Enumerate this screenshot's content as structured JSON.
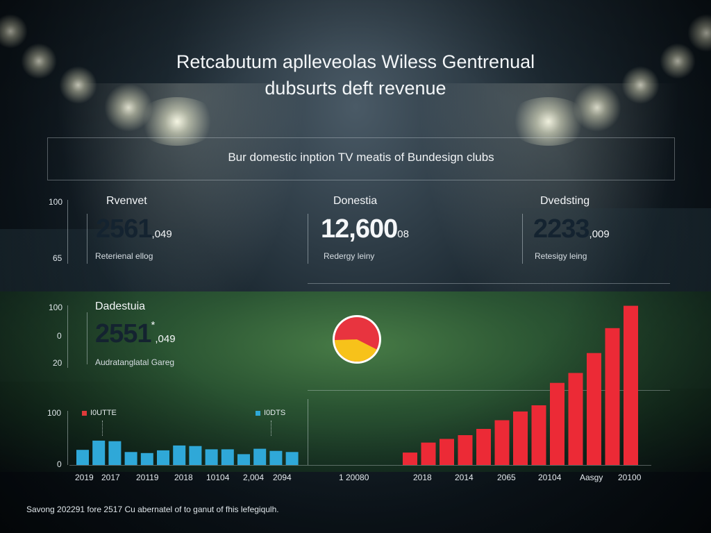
{
  "header": {
    "title_line1": "Retcabutum aplleveolas Wiless Gentrenual",
    "title_line2": "dubsurts deft revenue",
    "subtitle": "Bur domestic inption TV meatis of Bundesign clubs"
  },
  "kpi_row": {
    "axis_top": "100",
    "axis_bottom": "65",
    "cards": [
      {
        "label": "Rvenvet",
        "value_main": "2561",
        "value_suffix": ",049",
        "caption": "Reterienal ellog"
      },
      {
        "label": "Donestia",
        "value_main": "12,600",
        "value_suffix": "08",
        "caption": "Redergy leiny"
      },
      {
        "label": "Dvedsting",
        "value_main": "2233",
        "value_suffix": ",009",
        "caption": "Retesigy leing"
      }
    ]
  },
  "mid_row": {
    "axis_ticks": [
      "100",
      "0",
      "20"
    ],
    "card": {
      "label": "Dadestuia",
      "value_main": "2551",
      "value_mark": "*",
      "value_suffix": ",049",
      "caption": "Audratanglatal Gareg"
    }
  },
  "footnote": "Savong 202291 fore 2517 Cu abernatel of to ganut of fhis lefegiqulh.",
  "chart_data": [
    {
      "type": "pie",
      "slices": [
        {
          "value": 58,
          "color": "#e8343f"
        },
        {
          "value": 42,
          "color": "#f7c21a"
        }
      ]
    },
    {
      "type": "bar",
      "yticks": [
        "100",
        "0"
      ],
      "ylim": [
        0,
        100
      ],
      "legend": [
        {
          "label": "I0UTTE",
          "color": "#e03a3a"
        },
        {
          "label": "I0DTS",
          "color": "#2fa8d8"
        }
      ],
      "legend_position": "top",
      "color": "#2fa8d8",
      "values": [
        28,
        45,
        44,
        24,
        22,
        27,
        36,
        35,
        29,
        29,
        20,
        30,
        26,
        24
      ],
      "x_tick_labels": [
        "2019",
        "2017",
        "20119",
        "2018",
        "10104",
        "2,004",
        "2094"
      ]
    },
    {
      "type": "bar",
      "color": "#ec2a36",
      "values": [
        10,
        18,
        21,
        24,
        29,
        36,
        43,
        48,
        66,
        74,
        90,
        110,
        128
      ],
      "x_tick_labels": [
        "1 20080",
        "2018",
        "2014",
        "2065",
        "20104",
        "Aasgy",
        "20100"
      ]
    }
  ]
}
